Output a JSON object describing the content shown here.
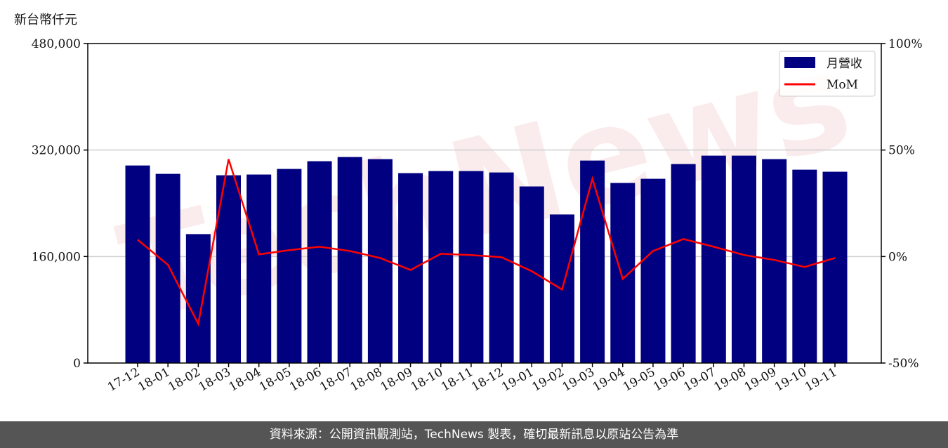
{
  "chart_data": {
    "type": "bar+line",
    "unit_label": "新台幣仟元",
    "categories": [
      "17-12",
      "18-01",
      "18-02",
      "18-03",
      "18-04",
      "18-05",
      "18-06",
      "18-07",
      "18-08",
      "18-09",
      "18-10",
      "18-11",
      "18-12",
      "19-01",
      "19-02",
      "19-03",
      "19-04",
      "19-05",
      "19-06",
      "19-07",
      "19-08",
      "19-09",
      "19-10",
      "19-11"
    ],
    "series": [
      {
        "name": "月營收",
        "type": "bar",
        "axis": "left",
        "color": "#000080",
        "values": [
          296800,
          284200,
          193700,
          282100,
          283200,
          291600,
          303200,
          309500,
          306300,
          285300,
          288400,
          288400,
          286300,
          265300,
          223200,
          304200,
          270500,
          276800,
          298900,
          311600,
          311600,
          306300,
          290500,
          287400
        ]
      },
      {
        "name": "MoM",
        "type": "line",
        "axis": "right",
        "color": "#ff0000",
        "values": [
          7.9,
          -3.9,
          -31.6,
          45.7,
          1.0,
          3.0,
          4.6,
          2.6,
          -0.7,
          -6.3,
          1.3,
          0.7,
          -0.3,
          -6.9,
          -15.5,
          36.5,
          -10.5,
          2.6,
          8.2,
          4.6,
          0.7,
          -1.6,
          -4.9,
          -0.7
        ]
      }
    ],
    "left_axis": {
      "range": [
        0,
        480000
      ],
      "ticks": [
        "0",
        "160,000",
        "320,000",
        "480,000"
      ],
      "tick_values": [
        0,
        160000,
        320000,
        480000
      ]
    },
    "right_axis": {
      "range": [
        -50,
        100
      ],
      "ticks": [
        "-50%",
        "0%",
        "50%",
        "100%"
      ],
      "tick_values": [
        -50,
        0,
        50,
        100
      ]
    },
    "grid": "horizontal",
    "legend_placement": "top-right"
  },
  "watermark": "TechNews",
  "footer": "資料來源：公開資訊觀測站，TechNews 製表，確切最新訊息以原站公告為準"
}
